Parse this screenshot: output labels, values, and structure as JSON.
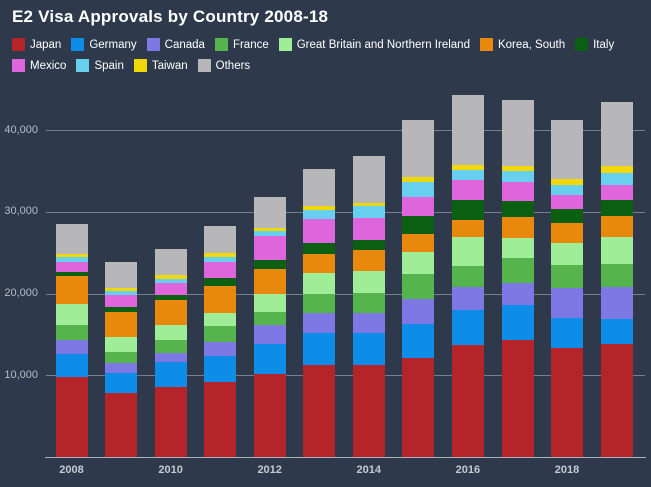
{
  "title": "E2 Visa Approvals by Country 2008-18",
  "colors": {
    "background": "#2e3a4c",
    "title_text": "#ffffff",
    "legend_text": "#ffffff",
    "gridline": "#8e96a2",
    "axis_line": "#aab2bd",
    "y_tick_label": "#b4bcc6",
    "x_tick_label": "#c3cad2"
  },
  "chart_data": {
    "type": "bar",
    "stacked": true,
    "title": "E2 Visa Approvals by Country 2008-18",
    "xlabel": "",
    "ylabel": "",
    "grid": true,
    "legend_position": "top",
    "ylim": [
      0,
      44800
    ],
    "y_ticks": [
      {
        "value": 10000,
        "label": "10,000"
      },
      {
        "value": 20000,
        "label": "20,000"
      },
      {
        "value": 30000,
        "label": "30,000"
      },
      {
        "value": 40000,
        "label": "40,000"
      }
    ],
    "categories": [
      "2008",
      "2009",
      "2010",
      "2011",
      "2012",
      "2013",
      "2014",
      "2015",
      "2016",
      "2017",
      "2018",
      "2019"
    ],
    "x_tick_labels_shown": [
      "2008",
      "2010",
      "2012",
      "2014",
      "2016",
      "2018"
    ],
    "x_tick_every": 2,
    "series": [
      {
        "name": "Japan",
        "color": "#b42429",
        "values": [
          9800,
          7790,
          8580,
          9220,
          10130,
          11240,
          11320,
          12060,
          13680,
          14300,
          13350,
          13890
        ]
      },
      {
        "name": "Germany",
        "color": "#0e8de8",
        "values": [
          2870,
          2450,
          2990,
          3150,
          3760,
          3950,
          3870,
          4280,
          4290,
          4280,
          3700,
          3060
        ]
      },
      {
        "name": "Canada",
        "color": "#7e78e5",
        "values": [
          1630,
          1220,
          1170,
          1750,
          2320,
          2450,
          2500,
          3060,
          2850,
          2660,
          3650,
          3870
        ]
      },
      {
        "name": "France",
        "color": "#55b44c",
        "values": [
          1830,
          1420,
          1560,
          1920,
          1550,
          2370,
          2400,
          3060,
          2530,
          3060,
          2860,
          2860
        ]
      },
      {
        "name": "Great Britain and Northern Ireland",
        "color": "#9fee97",
        "values": [
          2660,
          1840,
          1830,
          1630,
          2170,
          2520,
          2650,
          2640,
          3590,
          2450,
          2690,
          3220
        ]
      },
      {
        "name": "Korea, South",
        "color": "#e8890d",
        "values": [
          3340,
          3060,
          3060,
          3270,
          3140,
          2370,
          2570,
          2210,
          2040,
          2640,
          2450,
          2570
        ]
      },
      {
        "name": "Italy",
        "color": "#0a5f10",
        "values": [
          520,
          610,
          700,
          940,
          1020,
          1310,
          1230,
          2200,
          2450,
          1920,
          1720,
          2050
        ]
      },
      {
        "name": "Mexico",
        "color": "#df65dd",
        "values": [
          1230,
          1430,
          1470,
          2030,
          2970,
          2900,
          2730,
          2370,
          2530,
          2360,
          1620,
          1830
        ]
      },
      {
        "name": "Spain",
        "color": "#67d0ee",
        "values": [
          610,
          530,
          490,
          540,
          620,
          1180,
          1430,
          1840,
          1140,
          1310,
          1310,
          1470
        ]
      },
      {
        "name": "Taiwan",
        "color": "#f0d806",
        "values": [
          410,
          290,
          400,
          490,
          410,
          450,
          400,
          610,
          700,
          610,
          650,
          770
        ]
      },
      {
        "name": "Others",
        "color": "#b7b7b9",
        "values": [
          3640,
          3260,
          3270,
          3340,
          3750,
          4490,
          5760,
          6980,
          8480,
          8080,
          7310,
          7870
        ]
      }
    ]
  }
}
